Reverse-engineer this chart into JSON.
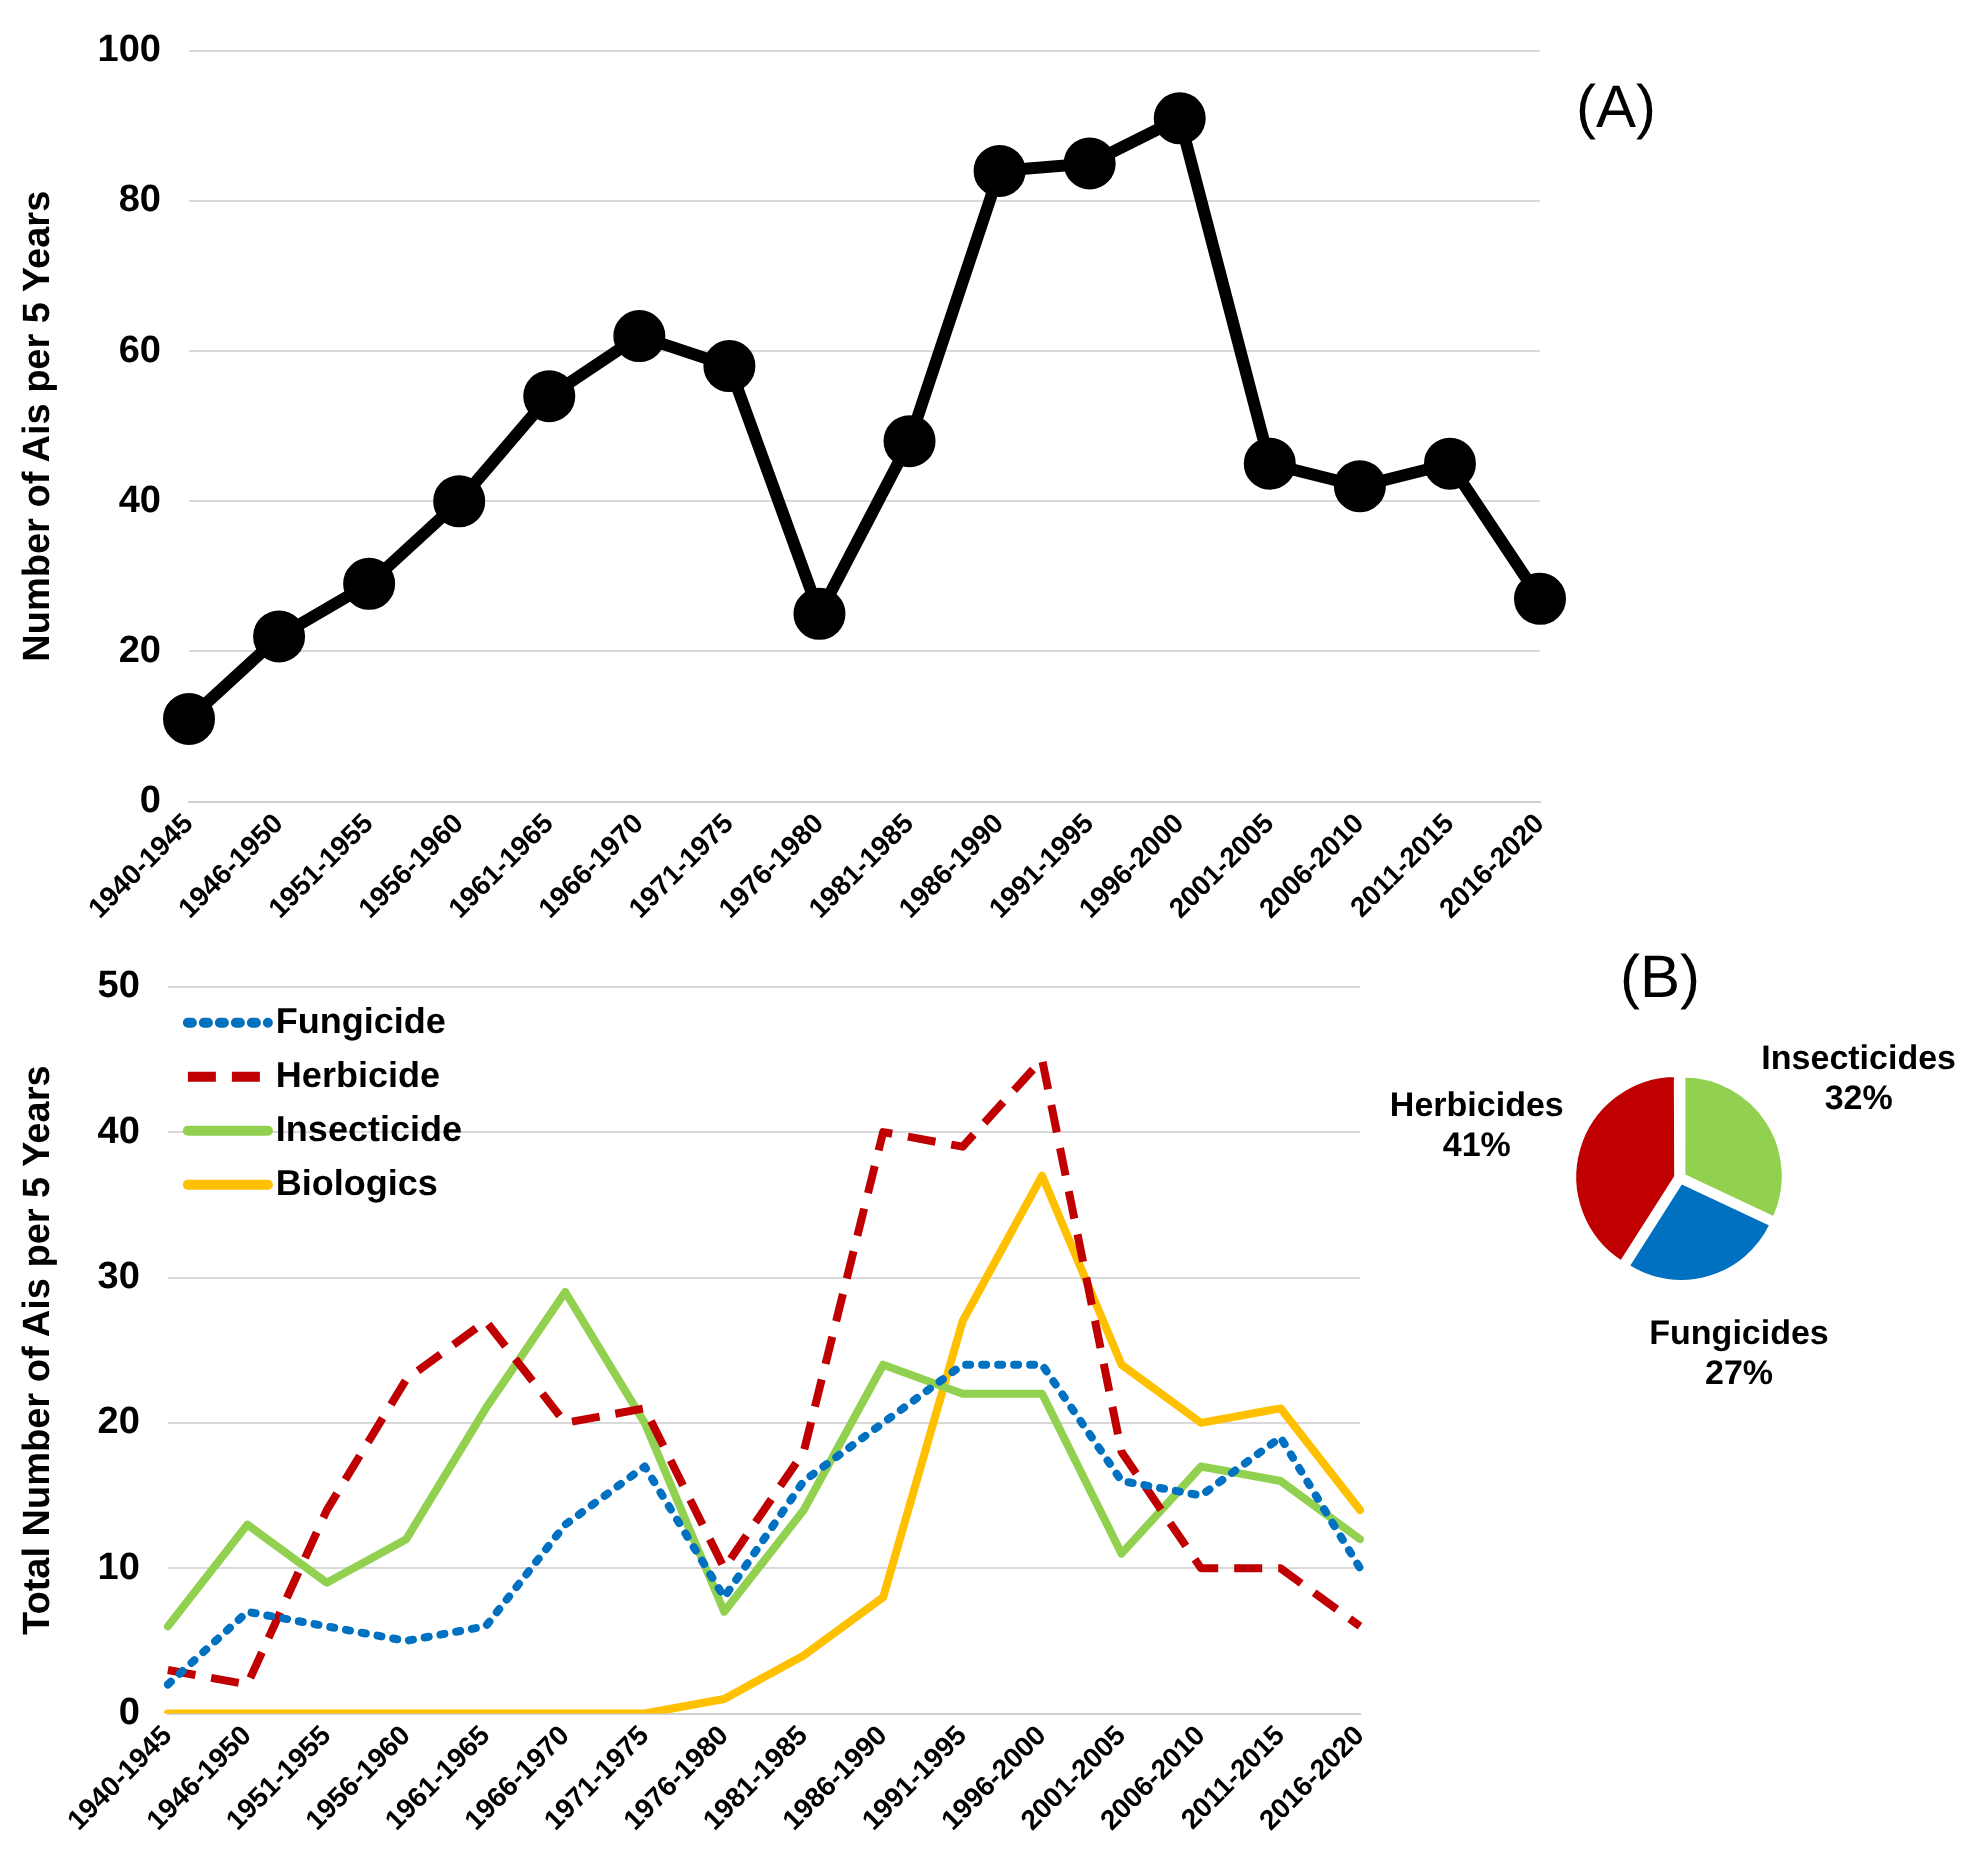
{
  "chart_data": [
    {
      "type": "line",
      "ylabel": "Number of Ais per 5 Years",
      "categories": [
        "1940-1945",
        "1946-1950",
        "1951-1955",
        "1956-1960",
        "1961-1965",
        "1966-1970",
        "1971-1975",
        "1976-1980",
        "1981-1985",
        "1986-1990",
        "1991-1995",
        "1996-2000",
        "2001-2005",
        "2006-2010",
        "2011-2015",
        "2016-2020"
      ],
      "series": [
        {
          "color": "#000000",
          "values": [
            11,
            22,
            29,
            40,
            54,
            62,
            58,
            25,
            48,
            84,
            85,
            91,
            45,
            42,
            45,
            27
          ]
        }
      ],
      "ylim": [
        0,
        100
      ],
      "yticks": [
        0,
        20,
        40,
        60,
        80,
        100
      ],
      "grid": "y",
      "marker": "circle",
      "annotations": [
        "(A)"
      ]
    },
    {
      "type": "line",
      "ylabel": "Total Number of Ais per 5 Years",
      "categories": [
        "1940-1945",
        "1946-1950",
        "1951-1955",
        "1956-1960",
        "1961-1965",
        "1966-1970",
        "1971-1975",
        "1976-1980",
        "1981-1985",
        "1986-1990",
        "1991-1995",
        "1996-2000",
        "2001-2005",
        "2006-2010",
        "2011-2015",
        "2016-2020"
      ],
      "series": [
        {
          "name": "Fungicide",
          "color": "#0070c0",
          "line_style": "dotted",
          "values": [
            2,
            7,
            6,
            5,
            6,
            13,
            17,
            8,
            16,
            20,
            24,
            24,
            16,
            15,
            19,
            10
          ]
        },
        {
          "name": "Herbicide",
          "color": "#c00000",
          "line_style": "dashed",
          "values": [
            3,
            2,
            14,
            23,
            27,
            20,
            21,
            10,
            18,
            40,
            39,
            45,
            18,
            10,
            10,
            6
          ]
        },
        {
          "name": "Insecticide",
          "color": "#92d050",
          "line_style": "solid",
          "values": [
            6,
            13,
            9,
            12,
            21,
            29,
            20,
            7,
            14,
            24,
            22,
            22,
            11,
            17,
            16,
            12
          ]
        },
        {
          "name": "Biologics",
          "color": "#ffc000",
          "line_style": "solid",
          "values": [
            0,
            0,
            0,
            0,
            0,
            0,
            0,
            1,
            4,
            8,
            27,
            37,
            24,
            20,
            21,
            14
          ]
        }
      ],
      "ylim": [
        0,
        50
      ],
      "yticks": [
        0,
        10,
        20,
        30,
        40,
        50
      ],
      "grid": "y",
      "legend": "top left",
      "marker": "none"
    },
    {
      "type": "pie",
      "categories": [
        "Insecticides",
        "Fungicides",
        "Herbicides"
      ],
      "values": [
        32,
        27,
        41
      ],
      "value_labels": [
        "32%",
        "27%",
        "41%"
      ],
      "colors": [
        "#92d050",
        "#0070c0",
        "#c00000"
      ],
      "annotations": [
        "(B)"
      ]
    }
  ]
}
